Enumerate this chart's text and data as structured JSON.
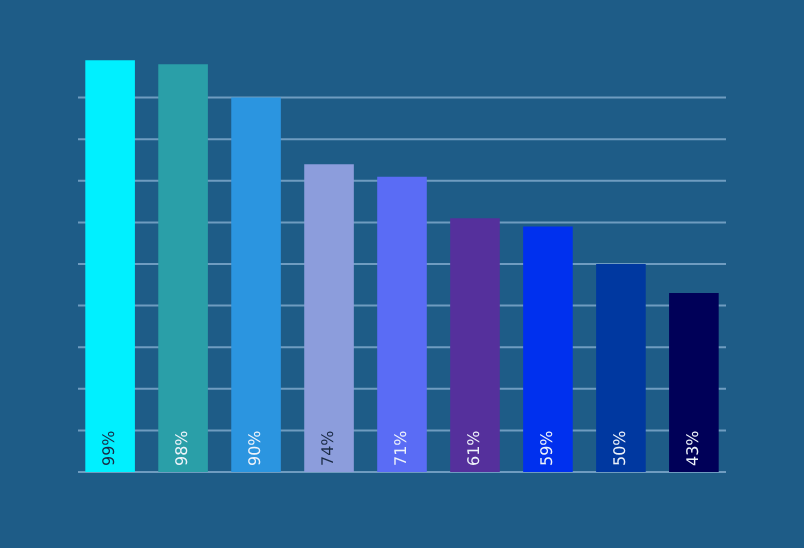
{
  "chart_data": {
    "type": "bar",
    "categories": [
      null,
      null,
      null,
      null,
      null,
      null,
      null,
      null,
      null
    ],
    "values": [
      99,
      98,
      90,
      74,
      71,
      61,
      59,
      50,
      43
    ],
    "colors": [
      "#00f0ff",
      "#2a9fa8",
      "#2b95e0",
      "#8c9ddc",
      "#5a6cf5",
      "#55309c",
      "#0030ee",
      "#0038a0",
      "#000058"
    ],
    "value_labels": [
      "99%",
      "98%",
      "90%",
      "74%",
      "71%",
      "61%",
      "59%",
      "50%",
      "43%"
    ],
    "ylim": [
      0,
      100
    ],
    "yticks": [
      0,
      10,
      20,
      30,
      40,
      50,
      60,
      70,
      80,
      90
    ],
    "tick_labels": false,
    "grid": "y"
  }
}
